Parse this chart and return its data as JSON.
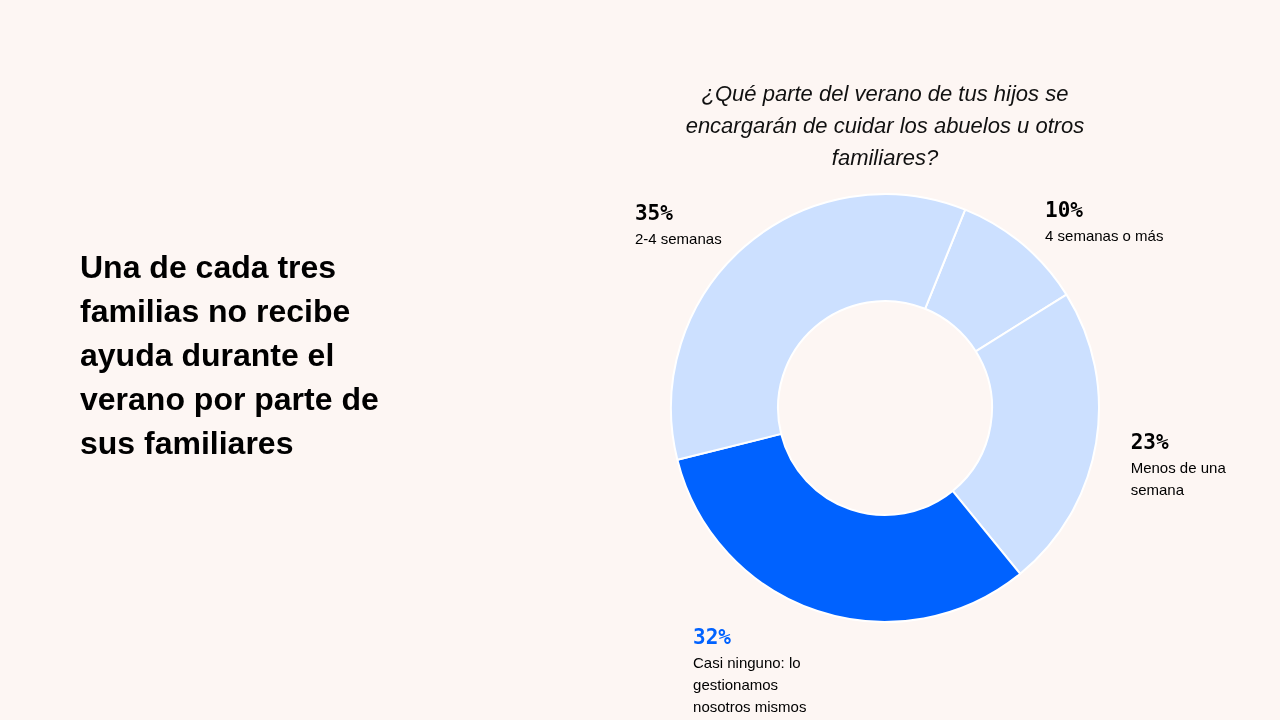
{
  "chart_data": {
    "type": "donut",
    "title": "Una de cada tres familias no recibe ayuda durante el verano por parte de sus familiares",
    "subtitle": "¿Qué parte del verano de tus hijos se encargarán de cuidar los abuelos u otros familiares?",
    "categories": [
      "4 semanas o más",
      "Menos de una semana",
      "Casi ninguno: lo gestionamos nosotros mismos",
      "2-4 semanas"
    ],
    "values": [
      10,
      23,
      32,
      35
    ],
    "value_labels": [
      "10%",
      "23%",
      "32%",
      "35%"
    ],
    "colors": [
      "#cce0ff",
      "#cce0ff",
      "#0062ff",
      "#cce0ff"
    ],
    "legend": false
  }
}
